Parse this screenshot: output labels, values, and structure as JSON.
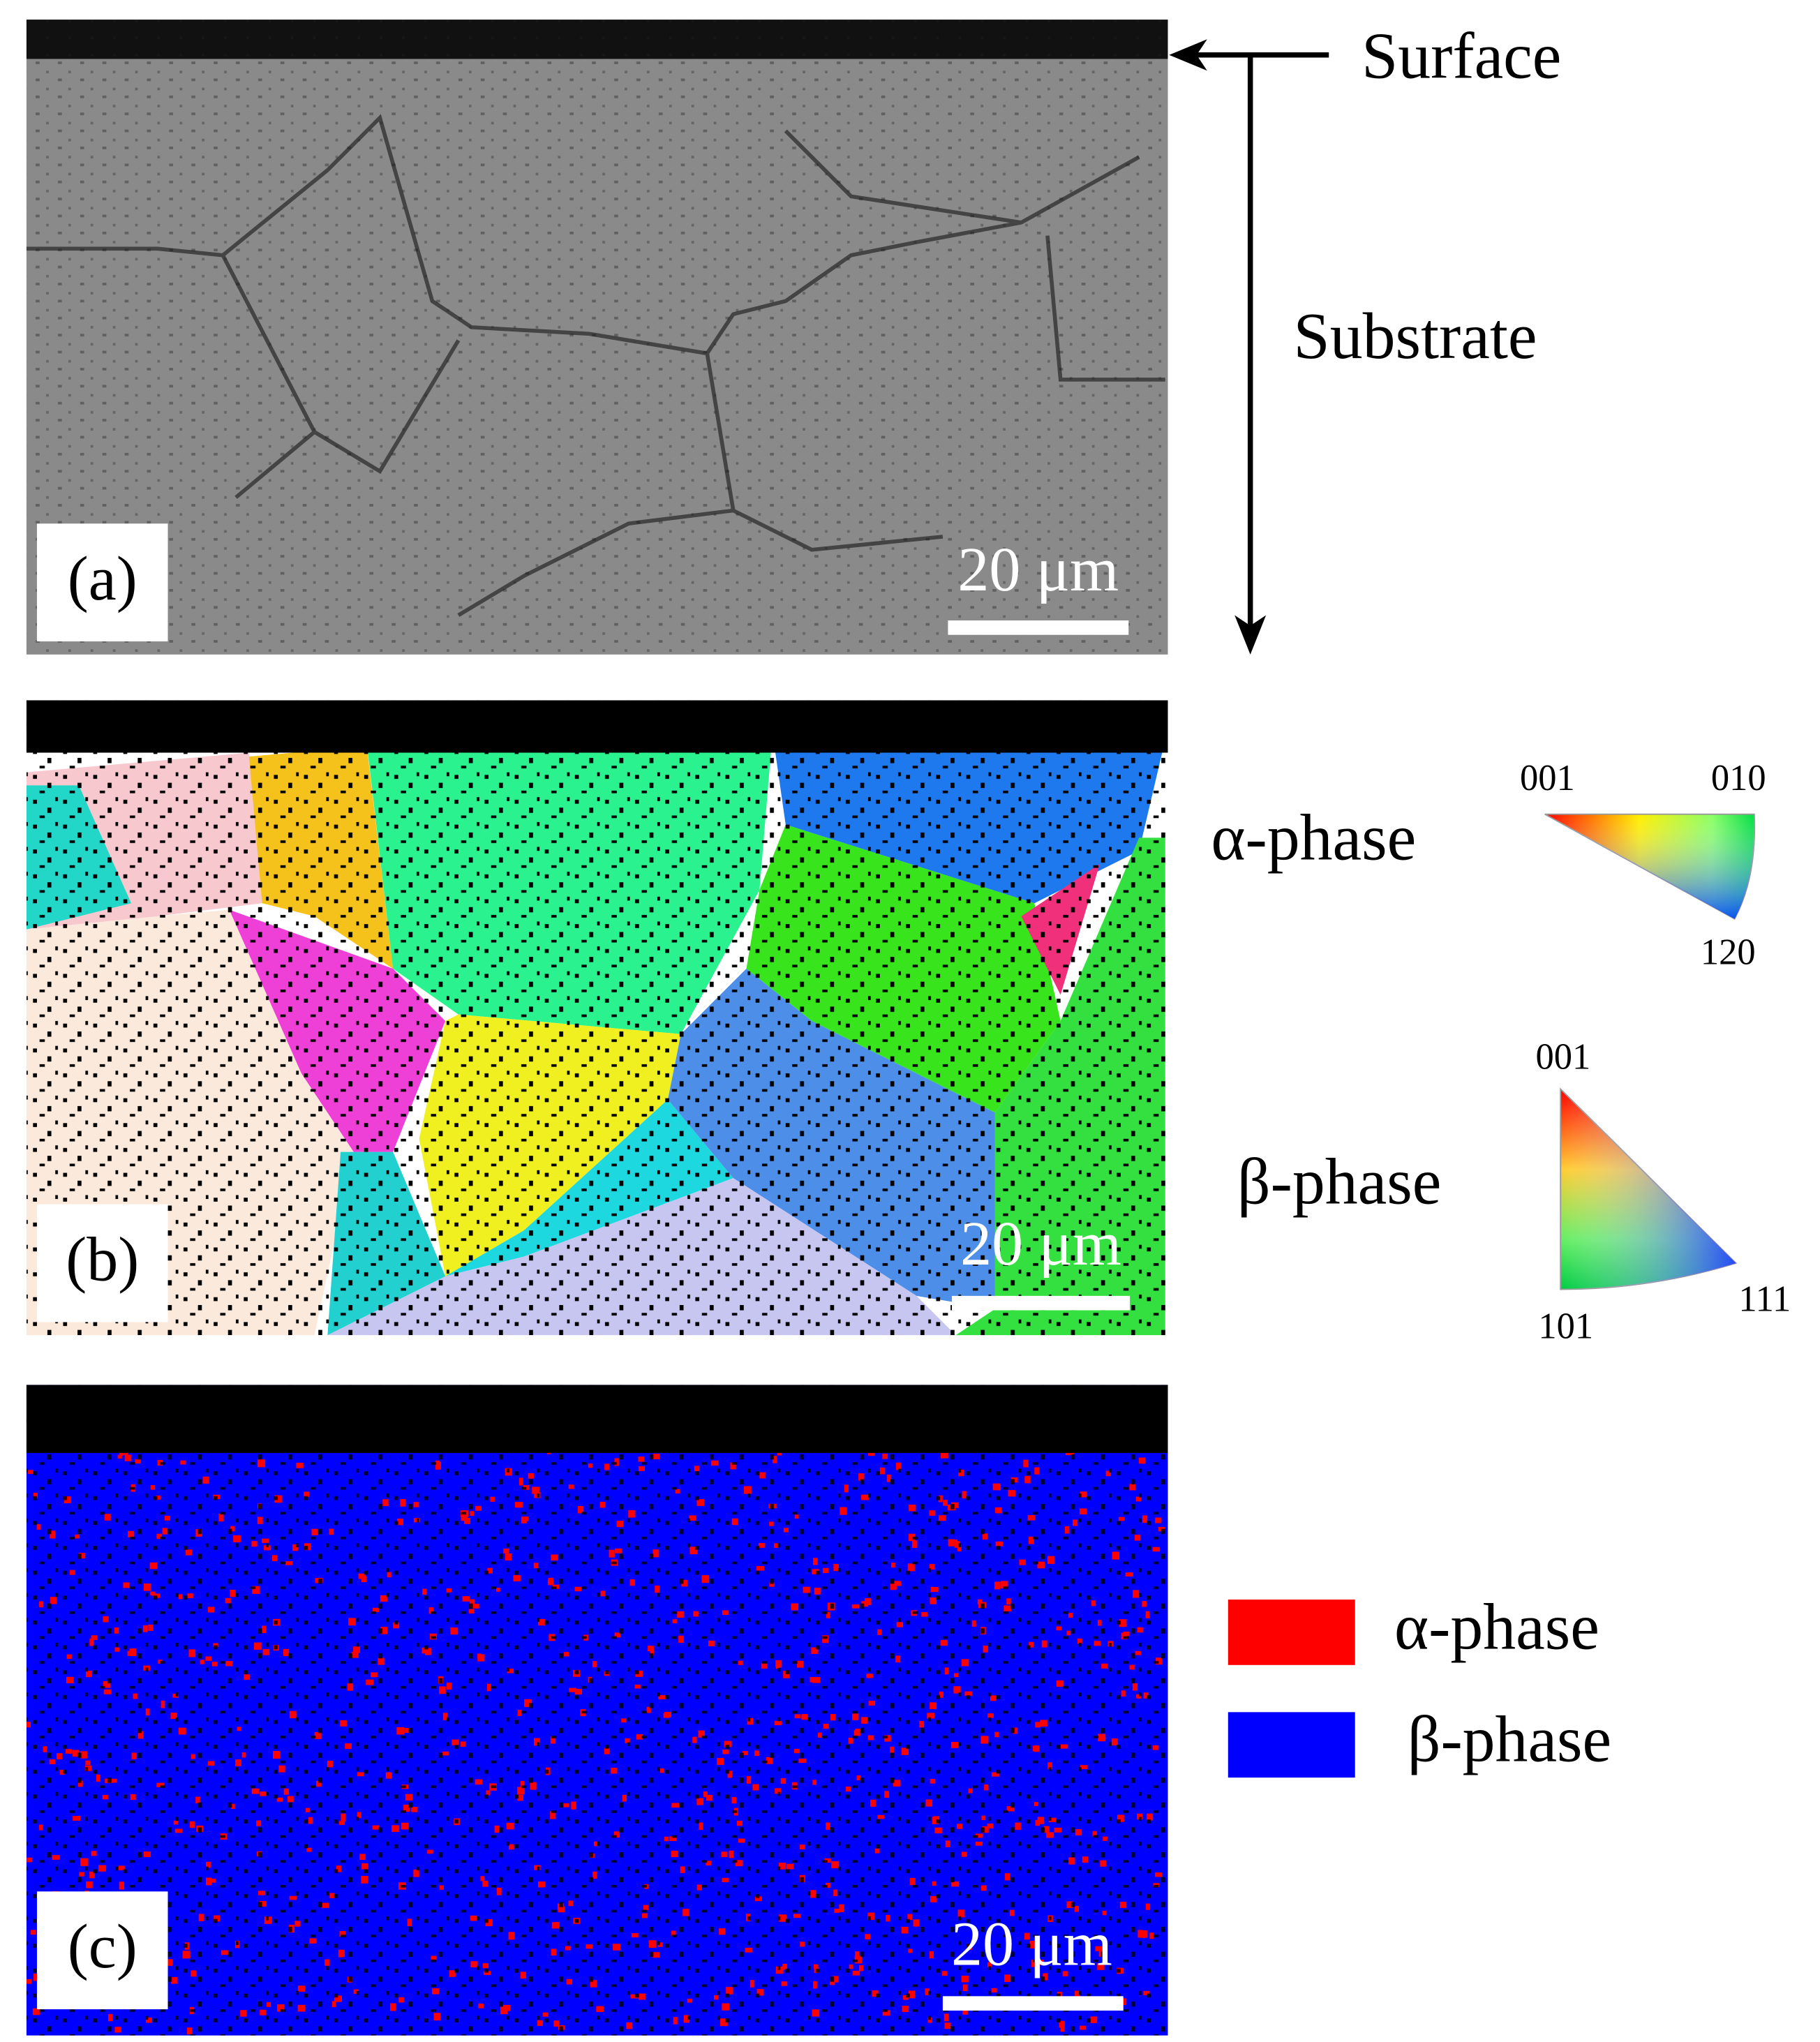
{
  "annotations": {
    "surface": "Surface",
    "substrate": "Substrate"
  },
  "panels": [
    {
      "label": "(a)",
      "scale_bar": "20 μm"
    },
    {
      "label": "(b)",
      "scale_bar": "20 μm"
    },
    {
      "label": "(c)",
      "scale_bar": "20 μm"
    }
  ],
  "ipf_keys": [
    {
      "phase": "α-phase",
      "corners": [
        "001",
        "010",
        "120"
      ]
    },
    {
      "phase": "β-phase",
      "corners": [
        "001",
        "101",
        "111"
      ]
    }
  ],
  "legend": [
    {
      "name": "α-phase",
      "color": "#ff0000"
    },
    {
      "name": "β-phase",
      "color": "#0000ff"
    }
  ]
}
